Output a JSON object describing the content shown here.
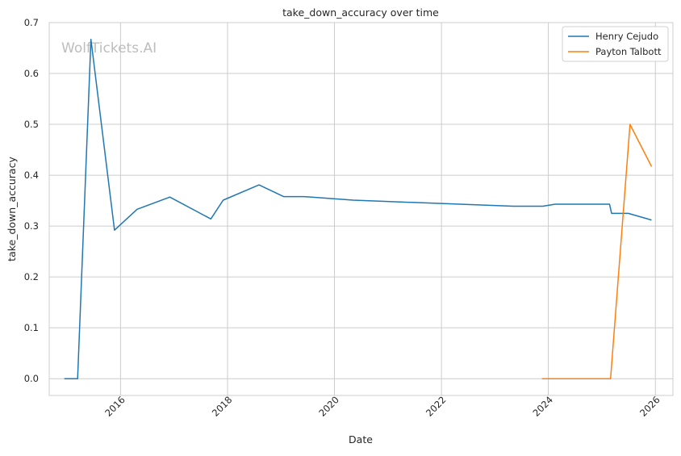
{
  "chart_data": {
    "type": "line",
    "title": "take_down_accuracy over time",
    "xlabel": "Date",
    "ylabel": "take_down_accuracy",
    "watermark": "WolfTickets.AI",
    "grid": true,
    "legend_position": "top-right",
    "xlim": [
      "2014-09-01",
      "2026-05-01"
    ],
    "ylim": [
      -0.033,
      0.7
    ],
    "x_ticks": [
      {
        "date": "2016-01-01",
        "label": "2016"
      },
      {
        "date": "2018-01-01",
        "label": "2018"
      },
      {
        "date": "2020-01-01",
        "label": "2020"
      },
      {
        "date": "2022-01-01",
        "label": "2022"
      },
      {
        "date": "2024-01-01",
        "label": "2024"
      },
      {
        "date": "2026-01-01",
        "label": "2026"
      }
    ],
    "y_ticks": [
      {
        "value": 0.0,
        "label": "0.0"
      },
      {
        "value": 0.1,
        "label": "0.1"
      },
      {
        "value": 0.2,
        "label": "0.2"
      },
      {
        "value": 0.3,
        "label": "0.3"
      },
      {
        "value": 0.4,
        "label": "0.4"
      },
      {
        "value": 0.5,
        "label": "0.5"
      },
      {
        "value": 0.6,
        "label": "0.6"
      },
      {
        "value": 0.7,
        "label": "0.7"
      }
    ],
    "series": [
      {
        "name": "Henry Cejudo",
        "color": "#1f77b4",
        "points": [
          {
            "x": "2014-12-13",
            "y": 0.0
          },
          {
            "x": "2015-03-14",
            "y": 0.0
          },
          {
            "x": "2015-06-13",
            "y": 0.667
          },
          {
            "x": "2015-11-21",
            "y": 0.292
          },
          {
            "x": "2016-04-23",
            "y": 0.333
          },
          {
            "x": "2016-12-03",
            "y": 0.357
          },
          {
            "x": "2017-09-09",
            "y": 0.314
          },
          {
            "x": "2017-12-02",
            "y": 0.351
          },
          {
            "x": "2018-08-04",
            "y": 0.381
          },
          {
            "x": "2019-01-19",
            "y": 0.358
          },
          {
            "x": "2019-06-08",
            "y": 0.358
          },
          {
            "x": "2020-05-09",
            "y": 0.351
          },
          {
            "x": "2023-05-06",
            "y": 0.339
          },
          {
            "x": "2023-11-25",
            "y": 0.339
          },
          {
            "x": "2024-02-17",
            "y": 0.343
          },
          {
            "x": "2025-02-22",
            "y": 0.343
          },
          {
            "x": "2025-03-08",
            "y": 0.325
          },
          {
            "x": "2025-07-01",
            "y": 0.325
          },
          {
            "x": "2025-12-06",
            "y": 0.312
          }
        ]
      },
      {
        "name": "Payton Talbott",
        "color": "#ff7f0e",
        "points": [
          {
            "x": "2023-11-18",
            "y": 0.0
          },
          {
            "x": "2025-03-01",
            "y": 0.0
          },
          {
            "x": "2025-07-12",
            "y": 0.5
          },
          {
            "x": "2025-12-06",
            "y": 0.417
          }
        ]
      }
    ]
  }
}
